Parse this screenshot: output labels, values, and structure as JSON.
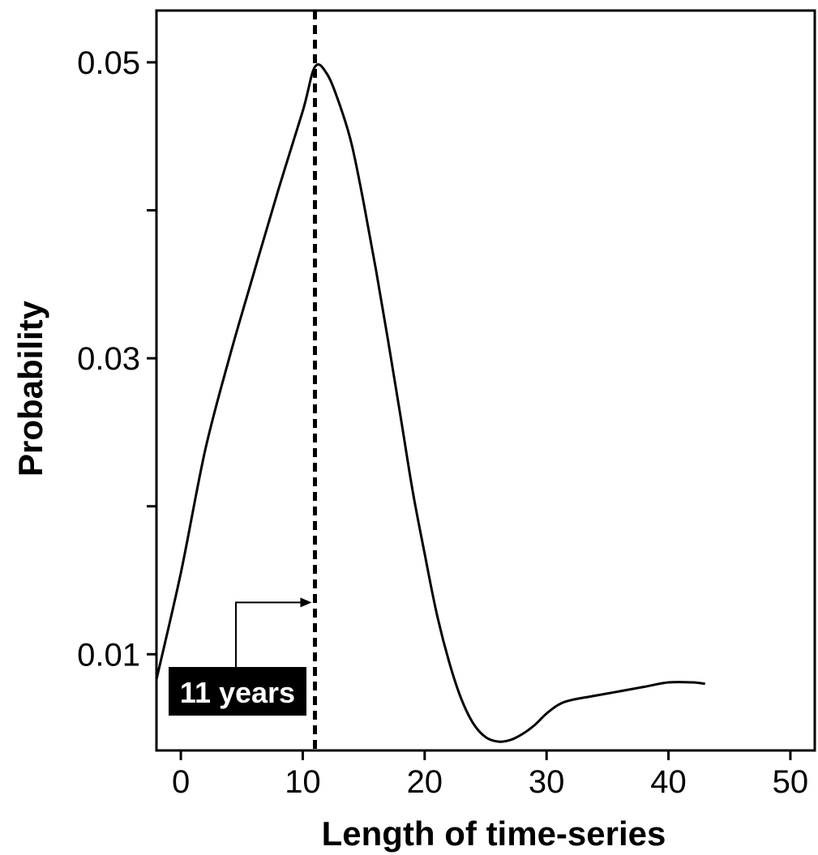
{
  "chart_data": {
    "type": "line",
    "xlabel": "Length of time-series",
    "ylabel": "Probability",
    "xlim": [
      -2,
      52
    ],
    "ylim": [
      0.0035,
      0.0535
    ],
    "x_ticks": [
      0,
      10,
      20,
      30,
      40,
      50
    ],
    "x_tick_labels": [
      "0",
      "10",
      "20",
      "30",
      "40",
      "50"
    ],
    "y_ticks": [
      0.01,
      0.02,
      0.03,
      0.04,
      0.05
    ],
    "y_tick_labels": [
      "0.01",
      "",
      "0.03",
      "",
      "0.05"
    ],
    "grid": false,
    "series": [
      {
        "x": [
          -2,
          0,
          2,
          4,
          6,
          8,
          10,
          11,
          12,
          13,
          14,
          15,
          16,
          17,
          18,
          19,
          20,
          21,
          22,
          23,
          24,
          25,
          26,
          27,
          28,
          29,
          30,
          31,
          32,
          34,
          36,
          38,
          40,
          42,
          43
        ],
        "y": [
          0.0083,
          0.0155,
          0.0238,
          0.0301,
          0.0358,
          0.0414,
          0.0467,
          0.0497,
          0.0492,
          0.0472,
          0.0445,
          0.0405,
          0.036,
          0.0312,
          0.0262,
          0.0211,
          0.0168,
          0.0127,
          0.0095,
          0.007,
          0.0053,
          0.0044,
          0.0041,
          0.0042,
          0.0046,
          0.0052,
          0.006,
          0.0066,
          0.0069,
          0.0072,
          0.0075,
          0.0078,
          0.0081,
          0.0081,
          0.008
        ]
      }
    ],
    "reference_line": {
      "x": 11,
      "style": "dashed"
    },
    "annotation": {
      "text": "11 years",
      "x": 11,
      "y": 0.0135
    }
  }
}
